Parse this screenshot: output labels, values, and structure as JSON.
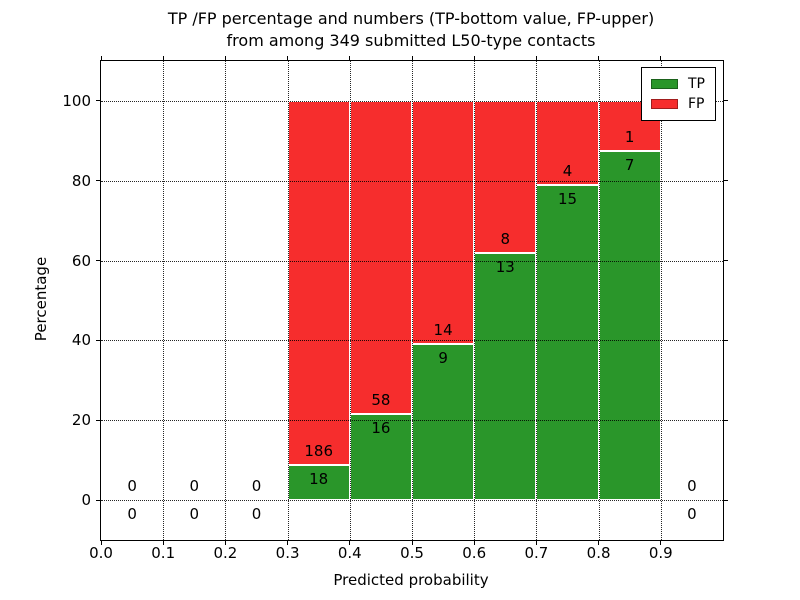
{
  "chart_data": {
    "type": "bar",
    "stacked": true,
    "title": "TP /FP percentage and numbers (TP-bottom value, FP-upper)\nfrom among 349 submitted L50-type contacts",
    "title_lines": [
      "TP /FP percentage and numbers (TP-bottom value, FP-upper)",
      "from among 349 submitted L50-type contacts"
    ],
    "total_contacts": 349,
    "xlabel": "Predicted probability",
    "ylabel": "Percentage",
    "xlim": [
      0.0,
      1.0
    ],
    "ylim": [
      -10,
      110
    ],
    "xticks": [
      0.0,
      0.1,
      0.2,
      0.3,
      0.4,
      0.5,
      0.6,
      0.7,
      0.8,
      0.9
    ],
    "xtick_labels": [
      "0.0",
      "0.1",
      "0.2",
      "0.3",
      "0.4",
      "0.5",
      "0.6",
      "0.7",
      "0.8",
      "0.9"
    ],
    "yticks": [
      0,
      20,
      40,
      60,
      80,
      100
    ],
    "ytick_labels": [
      "0",
      "20",
      "40",
      "60",
      "80",
      "100"
    ],
    "grid": true,
    "grid_style": "dotted",
    "colors": {
      "tp": "#2a962a",
      "fp": "#f62d2d"
    },
    "bins": [
      {
        "range": [
          0.0,
          0.1
        ],
        "tp": 0,
        "fp": 0,
        "tp_pct": 0,
        "fp_pct": 0
      },
      {
        "range": [
          0.1,
          0.2
        ],
        "tp": 0,
        "fp": 0,
        "tp_pct": 0,
        "fp_pct": 0
      },
      {
        "range": [
          0.2,
          0.3
        ],
        "tp": 0,
        "fp": 0,
        "tp_pct": 0,
        "fp_pct": 0
      },
      {
        "range": [
          0.3,
          0.4
        ],
        "tp": 18,
        "fp": 186,
        "tp_pct": 8.82,
        "fp_pct": 91.18
      },
      {
        "range": [
          0.4,
          0.5
        ],
        "tp": 16,
        "fp": 58,
        "tp_pct": 21.62,
        "fp_pct": 78.38
      },
      {
        "range": [
          0.5,
          0.6
        ],
        "tp": 9,
        "fp": 14,
        "tp_pct": 39.13,
        "fp_pct": 60.87
      },
      {
        "range": [
          0.6,
          0.7
        ],
        "tp": 13,
        "fp": 8,
        "tp_pct": 61.9,
        "fp_pct": 38.1
      },
      {
        "range": [
          0.7,
          0.8
        ],
        "tp": 15,
        "fp": 4,
        "tp_pct": 78.95,
        "fp_pct": 21.05
      },
      {
        "range": [
          0.8,
          0.9
        ],
        "tp": 7,
        "fp": 1,
        "tp_pct": 87.5,
        "fp_pct": 12.5
      },
      {
        "range": [
          0.9,
          1.0
        ],
        "tp": 0,
        "fp": 0,
        "tp_pct": 0,
        "fp_pct": 0
      }
    ],
    "legend": {
      "position": "upper right",
      "entries": [
        {
          "label": "TP",
          "color": "#2a962a"
        },
        {
          "label": "FP",
          "color": "#f62d2d"
        }
      ]
    }
  }
}
